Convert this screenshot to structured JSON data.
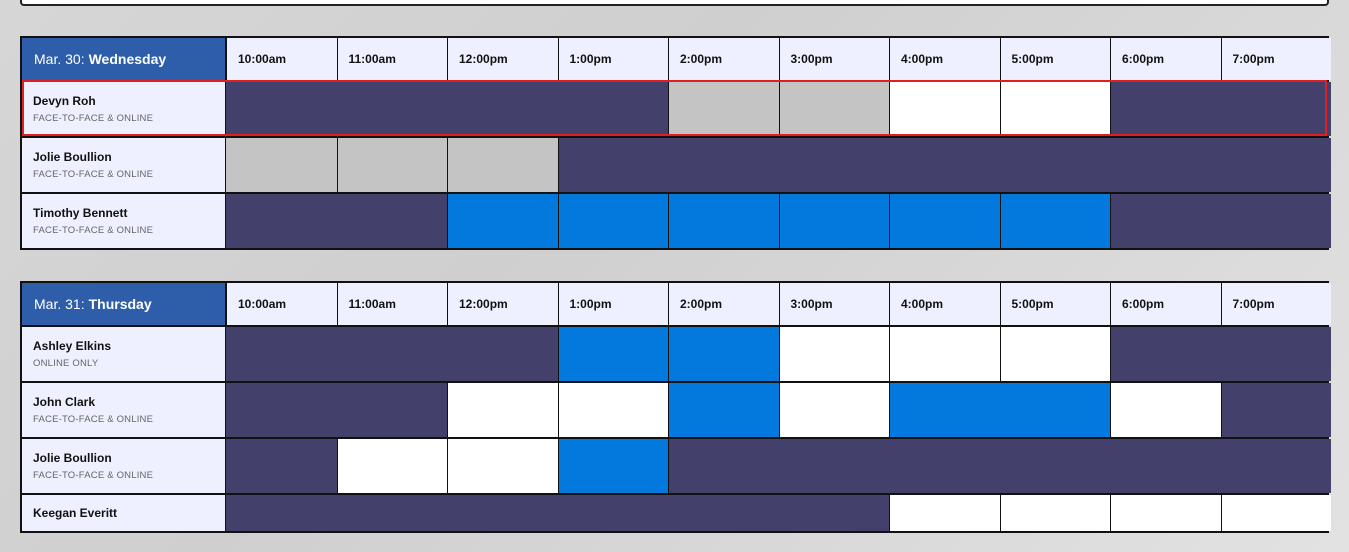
{
  "days": [
    {
      "date_prefix": "Mar. 30:",
      "day_name": "Wednesday",
      "times": [
        "10:00am",
        "11:00am",
        "12:00pm",
        "1:00pm",
        "2:00pm",
        "3:00pm",
        "4:00pm",
        "5:00pm",
        "6:00pm",
        "7:00pm"
      ],
      "people": [
        {
          "name": "Devyn Roh",
          "mode": "FACE-TO-FACE & ONLINE",
          "highlighted": true,
          "slots": [
            {
              "status": "booked",
              "span": 4
            },
            {
              "status": "unavailable",
              "span": 1
            },
            {
              "status": "unavailable",
              "span": 1
            },
            {
              "status": "open",
              "span": 1
            },
            {
              "status": "open",
              "span": 1
            },
            {
              "status": "booked",
              "span": 2
            }
          ]
        },
        {
          "name": "Jolie Boullion",
          "mode": "FACE-TO-FACE & ONLINE",
          "slots": [
            {
              "status": "unavailable",
              "span": 1
            },
            {
              "status": "unavailable",
              "span": 1
            },
            {
              "status": "unavailable",
              "span": 1
            },
            {
              "status": "booked",
              "span": 7
            }
          ]
        },
        {
          "name": "Timothy Bennett",
          "mode": "FACE-TO-FACE & ONLINE",
          "slots": [
            {
              "status": "booked",
              "span": 2
            },
            {
              "status": "selected",
              "span": 1
            },
            {
              "status": "selected",
              "span": 1
            },
            {
              "status": "selected",
              "span": 1
            },
            {
              "status": "selected",
              "span": 1
            },
            {
              "status": "selected",
              "span": 1
            },
            {
              "status": "selected",
              "span": 1
            },
            {
              "status": "booked",
              "span": 2
            }
          ]
        }
      ]
    },
    {
      "date_prefix": "Mar. 31:",
      "day_name": "Thursday",
      "times": [
        "10:00am",
        "11:00am",
        "12:00pm",
        "1:00pm",
        "2:00pm",
        "3:00pm",
        "4:00pm",
        "5:00pm",
        "6:00pm",
        "7:00pm"
      ],
      "people": [
        {
          "name": "Ashley Elkins",
          "mode": "ONLINE ONLY",
          "slots": [
            {
              "status": "booked",
              "span": 3
            },
            {
              "status": "selected",
              "span": 1
            },
            {
              "status": "selected",
              "span": 1
            },
            {
              "status": "open",
              "span": 1
            },
            {
              "status": "open",
              "span": 1
            },
            {
              "status": "open",
              "span": 1
            },
            {
              "status": "booked",
              "span": 2
            }
          ]
        },
        {
          "name": "John Clark",
          "mode": "FACE-TO-FACE & ONLINE",
          "slots": [
            {
              "status": "booked",
              "span": 2
            },
            {
              "status": "open",
              "span": 1
            },
            {
              "status": "open",
              "span": 1
            },
            {
              "status": "selected",
              "span": 1
            },
            {
              "status": "open",
              "span": 1
            },
            {
              "status": "selected",
              "span": 2
            },
            {
              "status": "open",
              "span": 1
            },
            {
              "status": "booked",
              "span": 1
            }
          ]
        },
        {
          "name": "Jolie Boullion",
          "mode": "FACE-TO-FACE & ONLINE",
          "slots": [
            {
              "status": "booked",
              "span": 1
            },
            {
              "status": "open",
              "span": 1
            },
            {
              "status": "open",
              "span": 1
            },
            {
              "status": "selected",
              "span": 1
            },
            {
              "status": "booked",
              "span": 6
            }
          ]
        },
        {
          "name": "Keegan Everitt",
          "mode": "",
          "slots": [
            {
              "status": "booked",
              "span": 6
            },
            {
              "status": "open",
              "span": 1
            },
            {
              "status": "open",
              "span": 1
            },
            {
              "status": "open",
              "span": 1
            },
            {
              "status": "open",
              "span": 1
            }
          ]
        }
      ]
    }
  ],
  "colors": {
    "header_blue": "#2e5eaa",
    "booked": "#43416b",
    "unavailable": "#c4c4c4",
    "open": "#ffffff",
    "selected": "#0479dd",
    "highlight_border": "#e02020"
  }
}
